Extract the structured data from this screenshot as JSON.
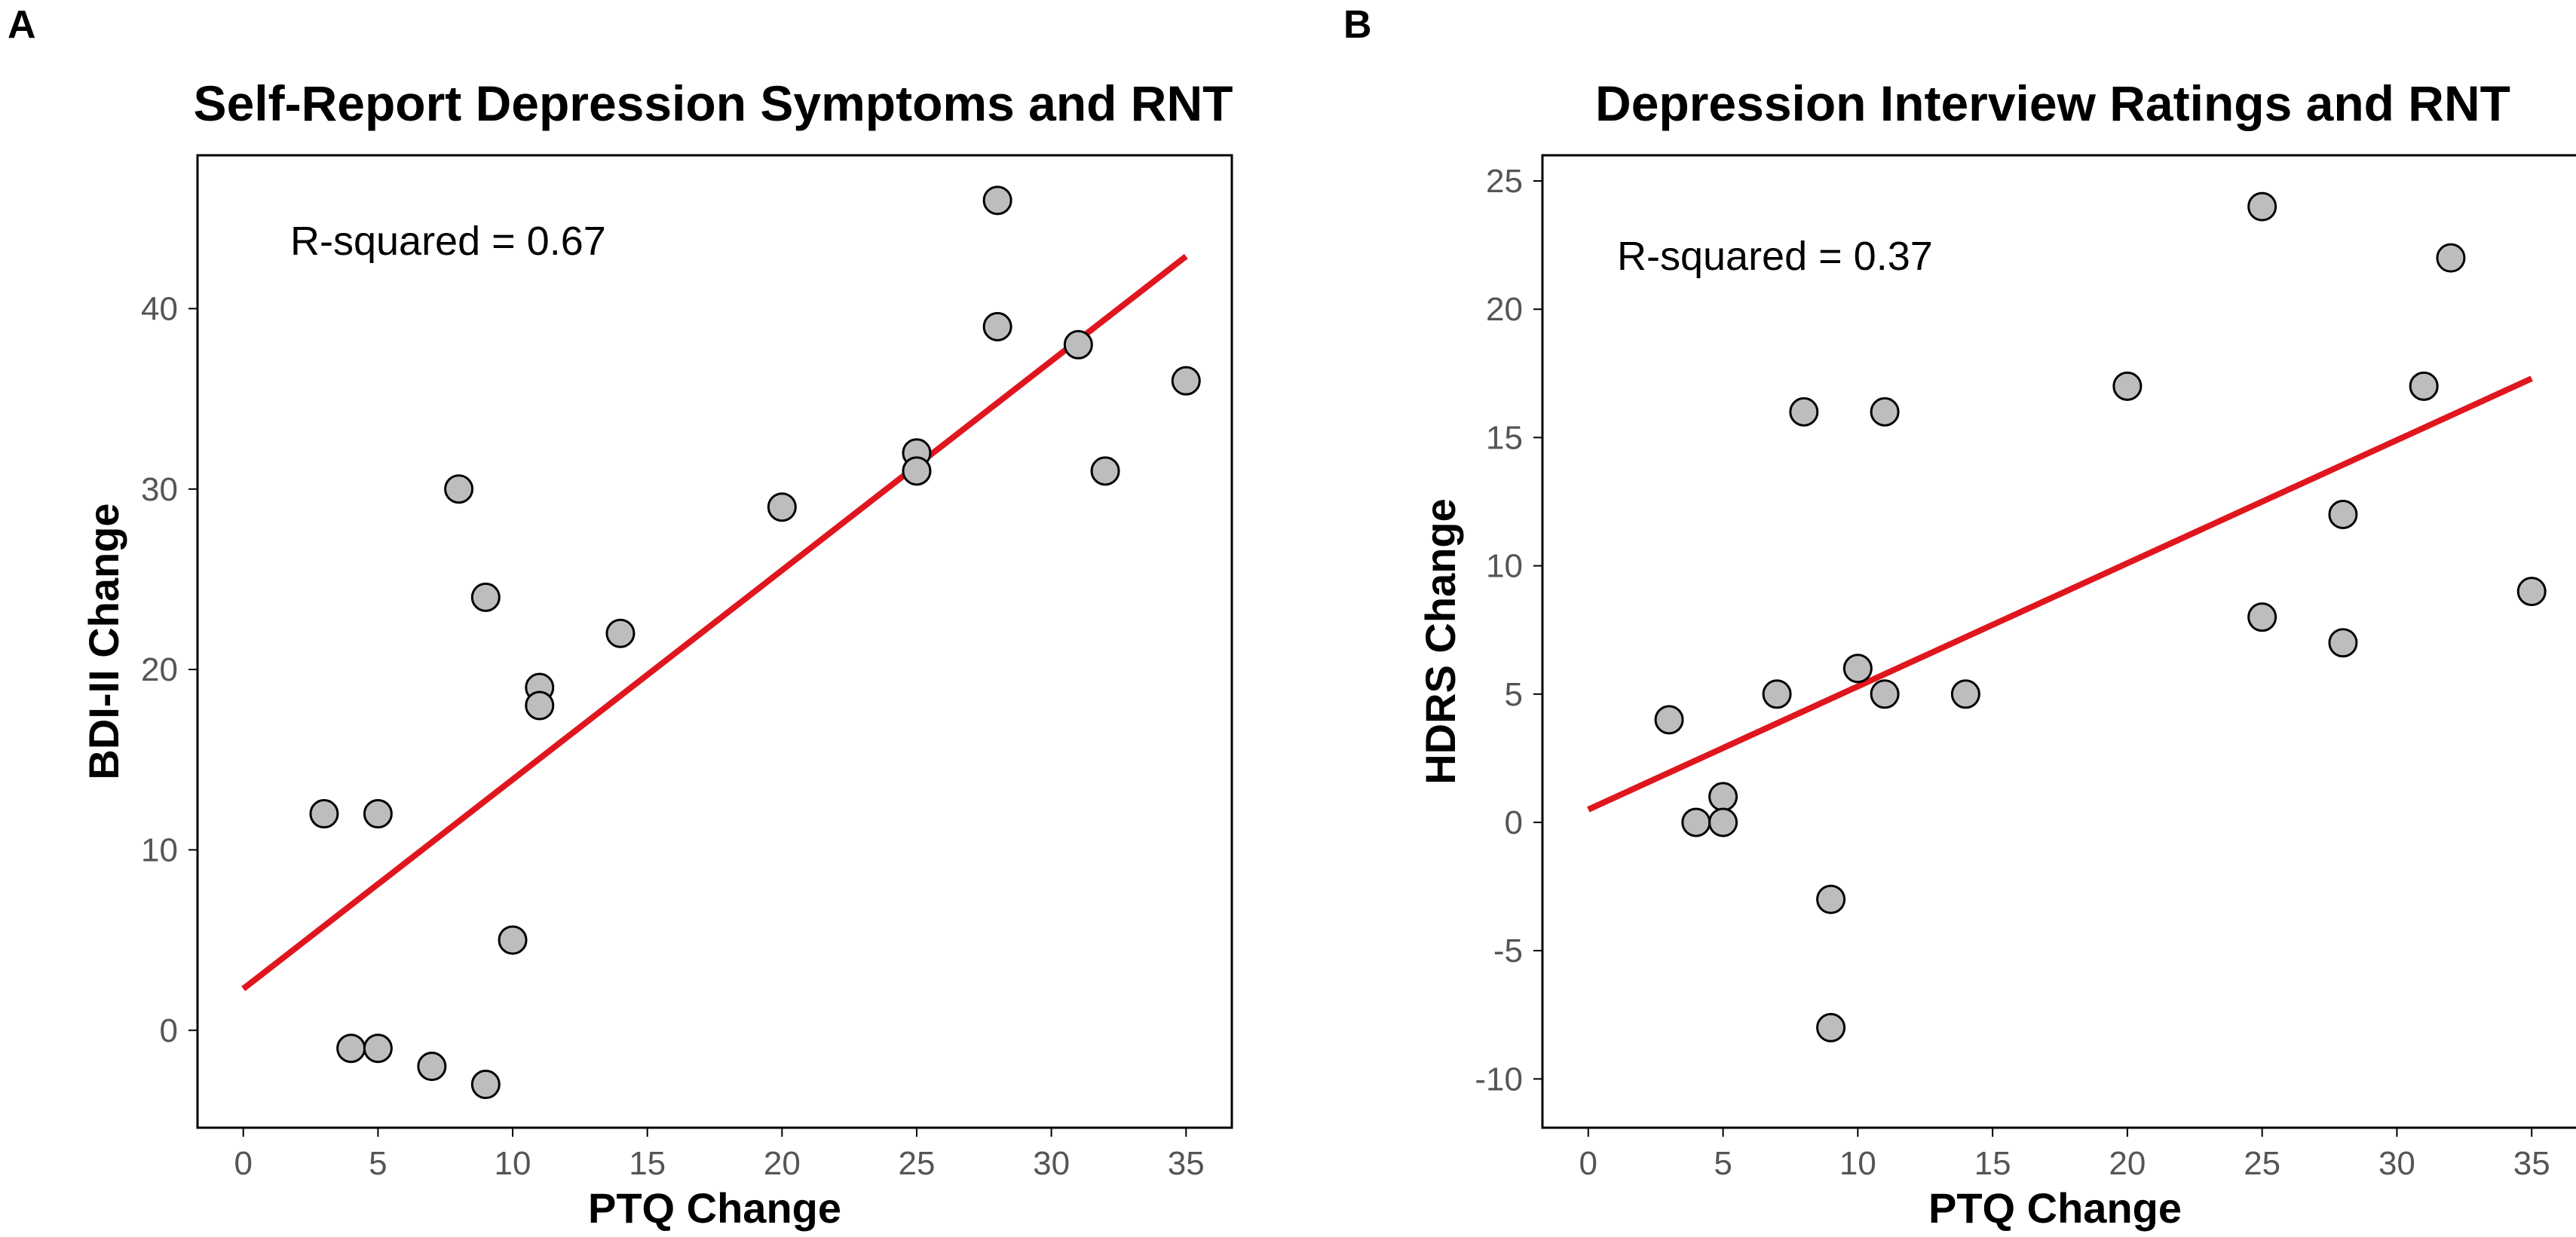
{
  "chart_data": [
    {
      "panel": "A",
      "type": "scatter",
      "title": "Self-Report Depression Symptoms and RNT",
      "xlabel": "PTQ Change",
      "ylabel": "BDI-II Change",
      "annotation": "R-squared = 0.67",
      "annotation_position": "top-left",
      "xlim": [
        -1.7,
        36.7
      ],
      "ylim": [
        -5.4,
        48.5
      ],
      "xticks": [
        0,
        5,
        10,
        15,
        20,
        25,
        30,
        35
      ],
      "yticks": [
        0,
        10,
        20,
        30,
        40
      ],
      "grid": false,
      "points": [
        {
          "x": 3,
          "y": 12
        },
        {
          "x": 5,
          "y": 12
        },
        {
          "x": 4,
          "y": -1
        },
        {
          "x": 5,
          "y": -1
        },
        {
          "x": 7,
          "y": -2
        },
        {
          "x": 9,
          "y": -3
        },
        {
          "x": 10,
          "y": 5
        },
        {
          "x": 8,
          "y": 30
        },
        {
          "x": 9,
          "y": 24
        },
        {
          "x": 11,
          "y": 19
        },
        {
          "x": 11,
          "y": 18
        },
        {
          "x": 14,
          "y": 22
        },
        {
          "x": 20,
          "y": 29
        },
        {
          "x": 25,
          "y": 32
        },
        {
          "x": 25,
          "y": 31
        },
        {
          "x": 28,
          "y": 46
        },
        {
          "x": 28,
          "y": 39
        },
        {
          "x": 31,
          "y": 38
        },
        {
          "x": 32,
          "y": 31
        },
        {
          "x": 35,
          "y": 36
        }
      ],
      "fit_line": {
        "x": [
          0,
          35
        ],
        "y": [
          2.3,
          42.9
        ],
        "color": "#e0161e"
      }
    },
    {
      "panel": "B",
      "type": "scatter",
      "title": "Depression Interview Ratings and RNT",
      "xlabel": "PTQ Change",
      "ylabel": "HDRS Change",
      "annotation": "R-squared = 0.37",
      "annotation_position": "top-left",
      "xlim": [
        -1.7,
        36.7
      ],
      "ylim": [
        -11.9,
        26.0
      ],
      "xticks": [
        0,
        5,
        10,
        15,
        20,
        25,
        30,
        35
      ],
      "yticks": [
        -10,
        -5,
        0,
        5,
        10,
        15,
        20,
        25
      ],
      "grid": false,
      "points": [
        {
          "x": 3,
          "y": 4
        },
        {
          "x": 4,
          "y": 0
        },
        {
          "x": 5,
          "y": 1
        },
        {
          "x": 5,
          "y": 0
        },
        {
          "x": 7,
          "y": 5
        },
        {
          "x": 8,
          "y": 16
        },
        {
          "x": 9,
          "y": -3
        },
        {
          "x": 9,
          "y": -8
        },
        {
          "x": 10,
          "y": 6
        },
        {
          "x": 11,
          "y": 5
        },
        {
          "x": 11,
          "y": 16
        },
        {
          "x": 14,
          "y": 5
        },
        {
          "x": 20,
          "y": 17
        },
        {
          "x": 25,
          "y": 24
        },
        {
          "x": 25,
          "y": 8
        },
        {
          "x": 28,
          "y": 12
        },
        {
          "x": 28,
          "y": 7
        },
        {
          "x": 31,
          "y": 17
        },
        {
          "x": 32,
          "y": 22
        },
        {
          "x": 35,
          "y": 9
        }
      ],
      "fit_line": {
        "x": [
          0,
          35
        ],
        "y": [
          0.5,
          17.3
        ],
        "color": "#e0161e"
      }
    }
  ]
}
